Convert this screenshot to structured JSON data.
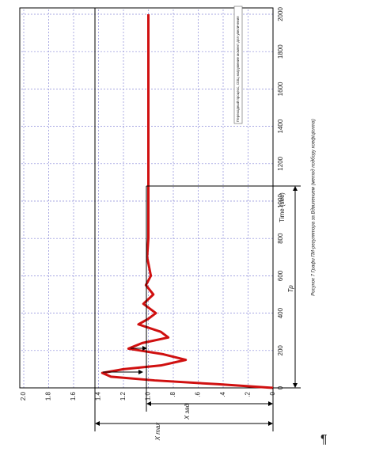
{
  "chart_data": {
    "type": "line",
    "x": [
      0,
      20,
      40,
      60,
      80,
      100,
      120,
      150,
      180,
      210,
      240,
      270,
      300,
      340,
      370,
      400,
      450,
      500,
      550,
      600,
      700,
      800,
      1000,
      1500,
      2000
    ],
    "series": [
      {
        "color": "#d01010",
        "values": [
          0,
          0.45,
          0.95,
          1.3,
          1.37,
          1.2,
          0.9,
          0.7,
          0.88,
          1.16,
          1.05,
          0.84,
          0.9,
          1.08,
          1.0,
          0.94,
          1.04,
          0.96,
          1.02,
          0.98,
          1.01,
          1.0,
          1.0,
          1.0,
          1.0
        ]
      }
    ],
    "xlim": [
      0,
      2000
    ],
    "xticks": [
      0,
      200,
      400,
      600,
      800,
      1000,
      1200,
      1400,
      1600,
      1800,
      2000
    ],
    "ylim": [
      0,
      2
    ],
    "yticks": [
      0,
      {
        "value": 0.2,
        "label": ".2"
      },
      {
        "value": 0.4,
        "label": ".4"
      },
      {
        "value": 0.6,
        "label": ".6"
      },
      {
        "value": 0.8,
        "label": ".8"
      },
      {
        "value": 1,
        "label": "1.0"
      },
      1.2,
      1.4,
      1.6,
      1.8,
      {
        "value": 2,
        "label": "2.0"
      }
    ],
    "grid": true,
    "x_label": "Time (sec)",
    "annotations": {
      "tp": "Tp",
      "x_set": "X зад",
      "x_max": "X max"
    },
    "legend_text": "Переходный процесс, ОЗЦ нагружение момент для увеличения",
    "caption": "Рисунок 7 Графи ПИ-регулятора за Вдвипением (метод подбору коефіцієнта)",
    "pilcrow": "¶"
  }
}
